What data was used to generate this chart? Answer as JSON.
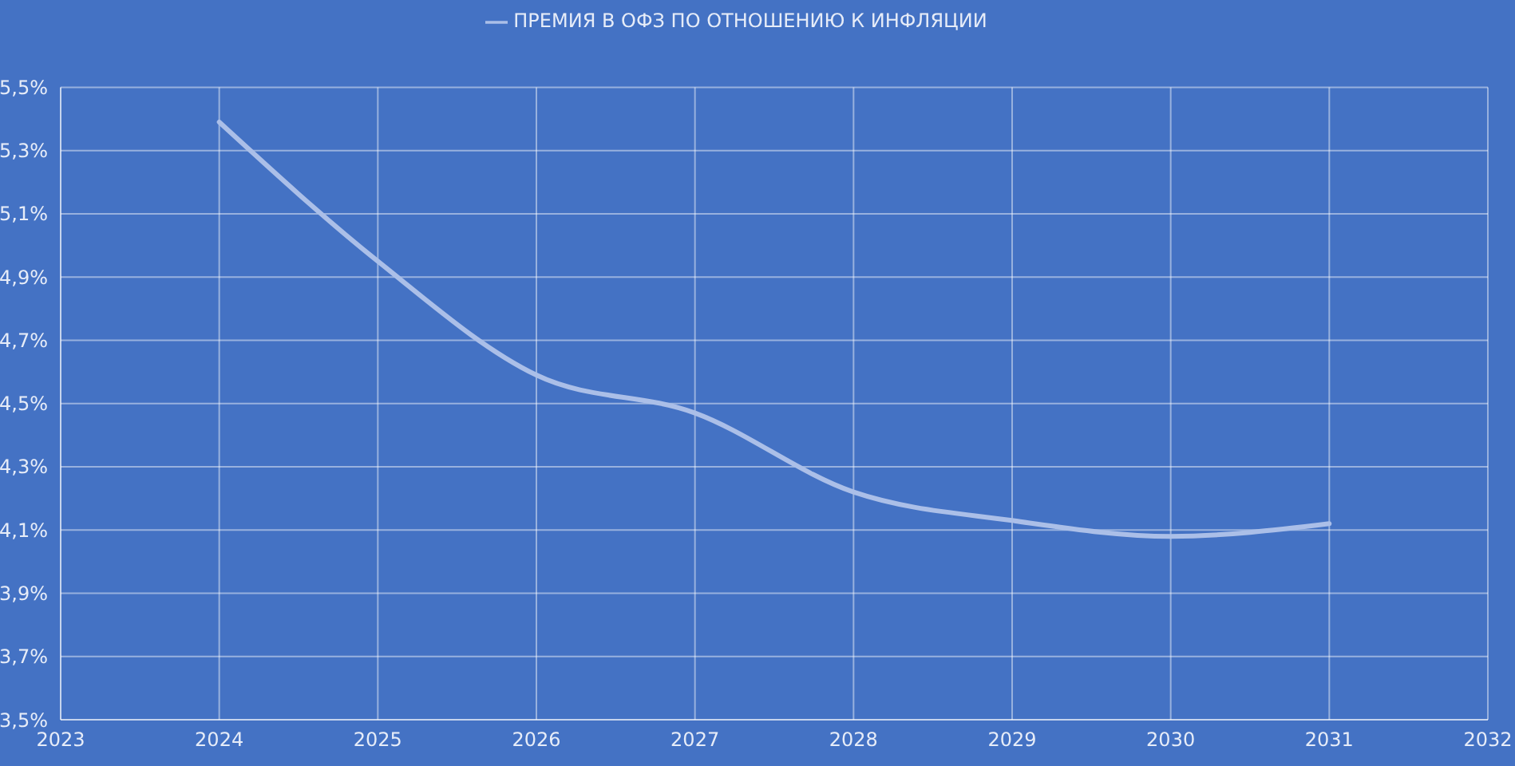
{
  "chart_data": {
    "type": "line",
    "x": [
      2024,
      2025,
      2026,
      2027,
      2028,
      2029,
      2030,
      2031
    ],
    "series": [
      {
        "name": "ПРЕМИЯ В ОФЗ ПО ОТНОШЕНИЮ К ИНФЛЯЦИИ",
        "color": "#abbfe8",
        "values": [
          5.39,
          4.95,
          4.59,
          4.47,
          4.22,
          4.13,
          4.08,
          4.12
        ]
      }
    ],
    "xlim": [
      2023,
      2032
    ],
    "xticks": [
      2023,
      2024,
      2025,
      2026,
      2027,
      2028,
      2029,
      2030,
      2031,
      2032
    ],
    "ylim": [
      3.5,
      5.5
    ],
    "yticks": [
      {
        "value": 3.5,
        "label": "3,5%"
      },
      {
        "value": 3.7,
        "label": "3,7%"
      },
      {
        "value": 3.9,
        "label": "3,9%"
      },
      {
        "value": 4.1,
        "label": "4,1%"
      },
      {
        "value": 4.3,
        "label": "4,3%"
      },
      {
        "value": 4.5,
        "label": "4,5%"
      },
      {
        "value": 4.7,
        "label": "4,7%"
      },
      {
        "value": 4.9,
        "label": "4,9%"
      },
      {
        "value": 5.1,
        "label": "5,1%"
      },
      {
        "value": 5.3,
        "label": "5,3%"
      },
      {
        "value": 5.5,
        "label": "5,5%"
      }
    ],
    "grid": true,
    "legend": "top",
    "marker": "none",
    "line_style": "solid"
  }
}
